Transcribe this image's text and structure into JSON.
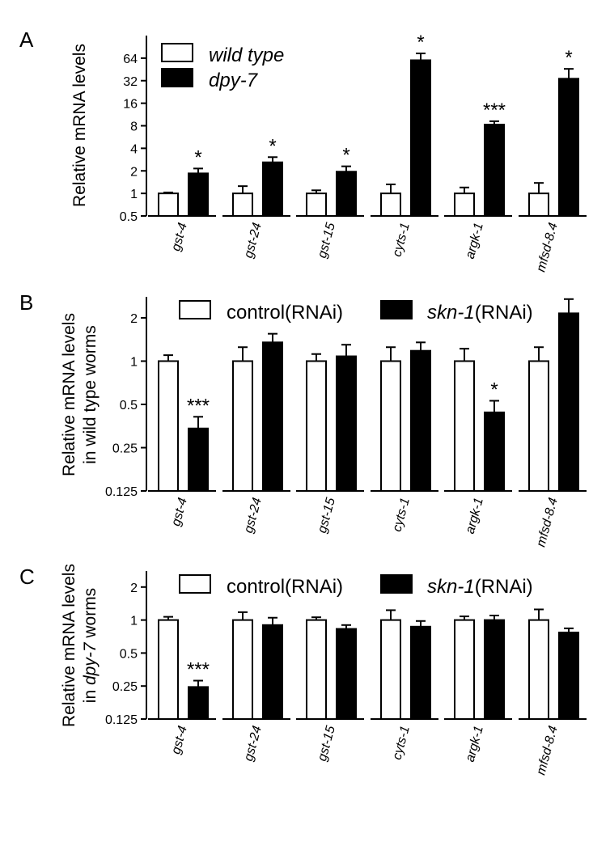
{
  "chart_data": [
    {
      "type": "bar",
      "panel": "A",
      "yscale": "log2",
      "ylabel": [
        "Relative mRNA levels"
      ],
      "ylim": [
        0.5,
        128
      ],
      "yticks": [
        0.5,
        1,
        2,
        4,
        8,
        16,
        32,
        64
      ],
      "categories": [
        "gst-4",
        "gst-24",
        "gst-15",
        "cyts-1",
        "argk-1",
        "mfsd-8.4"
      ],
      "series": [
        {
          "name": "wild type",
          "italic": true,
          "color": "#ffffff",
          "values": [
            1,
            1,
            1,
            1,
            1,
            1
          ],
          "errors": [
            1.03,
            1.25,
            1.1,
            1.32,
            1.2,
            1.38
          ]
        },
        {
          "name": "dpy-7",
          "italic": true,
          "color": "#000000",
          "values": [
            1.85,
            2.6,
            1.95,
            60,
            8.3,
            34
          ],
          "errors": [
            2.15,
            3.05,
            2.3,
            74,
            9.2,
            46
          ]
        }
      ],
      "significance": [
        "*",
        "*",
        "*",
        "*",
        "***",
        "*"
      ]
    },
    {
      "type": "bar",
      "panel": "B",
      "yscale": "log2",
      "ylabel": [
        "Relative mRNA levels",
        "in wild type worms"
      ],
      "ylim": [
        0.125,
        2.8
      ],
      "yticks": [
        0.125,
        0.25,
        0.5,
        1,
        2
      ],
      "categories": [
        "gst-4",
        "gst-24",
        "gst-15",
        "cyts-1",
        "argk-1",
        "mfsd-8.4"
      ],
      "series": [
        {
          "name_parts": [
            "control(RNAi)"
          ],
          "color": "#ffffff",
          "values": [
            1,
            1,
            1,
            1,
            1,
            1
          ],
          "errors": [
            1.1,
            1.25,
            1.12,
            1.25,
            1.22,
            1.25
          ]
        },
        {
          "name_parts": [
            "skn-1",
            "(RNAi)"
          ],
          "color": "#000000",
          "values": [
            0.34,
            1.35,
            1.08,
            1.18,
            0.44,
            2.15
          ],
          "errors": [
            0.41,
            1.55,
            1.3,
            1.35,
            0.53,
            2.7
          ]
        }
      ],
      "significance": [
        "***",
        "",
        "",
        "",
        "*",
        ""
      ]
    },
    {
      "type": "bar",
      "panel": "C",
      "yscale": "log2",
      "ylabel": [
        "Relative mRNA levels",
        "in dpy-7 worms"
      ],
      "ylim": [
        0.125,
        2.8
      ],
      "yticks": [
        0.125,
        0.25,
        0.5,
        1,
        2
      ],
      "categories": [
        "gst-4",
        "gst-24",
        "gst-15",
        "cyts-1",
        "argk-1",
        "mfsd-8.4"
      ],
      "series": [
        {
          "name_parts": [
            "control(RNAi)"
          ],
          "color": "#ffffff",
          "values": [
            1,
            1,
            1,
            1,
            1,
            1
          ],
          "errors": [
            1.07,
            1.18,
            1.06,
            1.23,
            1.08,
            1.25
          ]
        },
        {
          "name_parts": [
            "skn-1",
            "(RNAi)"
          ],
          "color": "#000000",
          "values": [
            0.245,
            0.9,
            0.83,
            0.87,
            1.0,
            0.77
          ],
          "errors": [
            0.28,
            1.05,
            0.9,
            0.98,
            1.1,
            0.84
          ]
        }
      ],
      "significance": [
        "***",
        "",
        "",
        "",
        "",
        ""
      ]
    }
  ]
}
